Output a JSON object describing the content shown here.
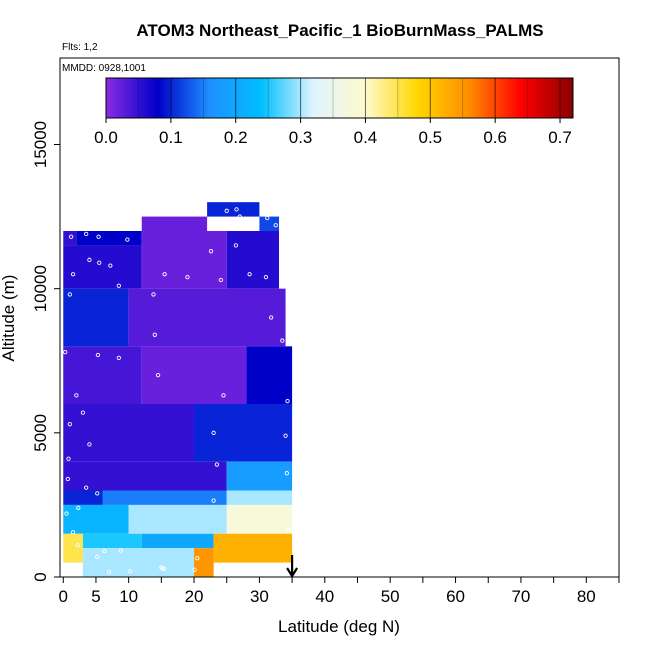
{
  "chart_data": {
    "type": "heatmap",
    "title": "ATOM3 Northeast_Pacific_1 BioBurnMass_PALMS",
    "subtitle_flights": "Flts: 1,2",
    "subtitle_dates": "MMDD: 0928,1001",
    "xlabel": "Latitude (deg N)",
    "ylabel": "Altitude (m)",
    "xlim": [
      -0.5,
      85
    ],
    "ylim": [
      0,
      18000
    ],
    "x_ticks": [
      0,
      5,
      10,
      20,
      30,
      40,
      50,
      60,
      70,
      80
    ],
    "y_ticks": [
      0,
      5000,
      10000,
      15000
    ],
    "marker_latitude": 35,
    "colorbar": {
      "min": 0,
      "max": 0.72,
      "ticks": [
        0.0,
        0.1,
        0.2,
        0.3,
        0.4,
        0.5,
        0.6,
        0.7
      ],
      "tick_labels": [
        "0.0",
        "0.1",
        "0.2",
        "0.3",
        "0.4",
        "0.5",
        "0.6",
        "0.7"
      ],
      "colors": [
        "#8a2be2",
        "#0000c8",
        "#1e90ff",
        "#00bfff",
        "#e0f4ff",
        "#fffacd",
        "#ffd700",
        "#ff8c00",
        "#ff0000",
        "#8b0000"
      ]
    },
    "cells": [
      {
        "lat0": 0,
        "lat1": 2,
        "alt0": 11500,
        "alt1": 12000,
        "value": 0.05
      },
      {
        "lat0": 2,
        "lat1": 12,
        "alt0": 11500,
        "alt1": 12000,
        "value": 0.08
      },
      {
        "lat0": 12,
        "lat1": 22,
        "alt0": 12000,
        "alt1": 12500,
        "value": 0.02
      },
      {
        "lat0": 22,
        "lat1": 30,
        "alt0": 12500,
        "alt1": 13000,
        "value": 0.1
      },
      {
        "lat0": 30,
        "lat1": 33,
        "alt0": 12000,
        "alt1": 12500,
        "value": 0.12
      },
      {
        "lat0": 0,
        "lat1": 12,
        "alt0": 10000,
        "alt1": 11500,
        "value": 0.06
      },
      {
        "lat0": 12,
        "lat1": 25,
        "alt0": 10000,
        "alt1": 12000,
        "value": 0.02
      },
      {
        "lat0": 25,
        "lat1": 33,
        "alt0": 10000,
        "alt1": 12000,
        "value": 0.06
      },
      {
        "lat0": 0,
        "lat1": 10,
        "alt0": 8000,
        "alt1": 10000,
        "value": 0.1
      },
      {
        "lat0": 10,
        "lat1": 34,
        "alt0": 8000,
        "alt1": 10000,
        "value": 0.03
      },
      {
        "lat0": 0,
        "lat1": 12,
        "alt0": 6000,
        "alt1": 8000,
        "value": 0.04
      },
      {
        "lat0": 12,
        "lat1": 28,
        "alt0": 6000,
        "alt1": 8000,
        "value": 0.02
      },
      {
        "lat0": 28,
        "lat1": 35,
        "alt0": 6000,
        "alt1": 8000,
        "value": 0.08
      },
      {
        "lat0": 0,
        "lat1": 20,
        "alt0": 4000,
        "alt1": 6000,
        "value": 0.05
      },
      {
        "lat0": 20,
        "lat1": 35,
        "alt0": 4000,
        "alt1": 6000,
        "value": 0.1
      },
      {
        "lat0": 0,
        "lat1": 25,
        "alt0": 3000,
        "alt1": 4000,
        "value": 0.05
      },
      {
        "lat0": 25,
        "lat1": 35,
        "alt0": 3000,
        "alt1": 4000,
        "value": 0.18
      },
      {
        "lat0": 0,
        "lat1": 6,
        "alt0": 2500,
        "alt1": 3000,
        "value": 0.1
      },
      {
        "lat0": 6,
        "lat1": 25,
        "alt0": 2500,
        "alt1": 3000,
        "value": 0.15
      },
      {
        "lat0": 25,
        "lat1": 35,
        "alt0": 2500,
        "alt1": 3000,
        "value": 0.3
      },
      {
        "lat0": 0,
        "lat1": 10,
        "alt0": 1500,
        "alt1": 2500,
        "value": 0.22
      },
      {
        "lat0": 10,
        "lat1": 25,
        "alt0": 1500,
        "alt1": 2500,
        "value": 0.3
      },
      {
        "lat0": 25,
        "lat1": 35,
        "alt0": 1500,
        "alt1": 2500,
        "value": 0.38
      },
      {
        "lat0": 0,
        "lat1": 3,
        "alt0": 500,
        "alt1": 1500,
        "value": 0.45
      },
      {
        "lat0": 3,
        "lat1": 12,
        "alt0": 1000,
        "alt1": 1500,
        "value": 0.25
      },
      {
        "lat0": 12,
        "lat1": 23,
        "alt0": 1000,
        "alt1": 1500,
        "value": 0.2
      },
      {
        "lat0": 23,
        "lat1": 35,
        "alt0": 500,
        "alt1": 1500,
        "value": 0.52
      },
      {
        "lat0": 3,
        "lat1": 20,
        "alt0": 0,
        "alt1": 1000,
        "value": 0.3
      },
      {
        "lat0": 20,
        "lat1": 23,
        "alt0": 0,
        "alt1": 1000,
        "value": 0.55
      }
    ],
    "samples": [
      {
        "lat": 1.2,
        "alt": 11800
      },
      {
        "lat": 3.5,
        "alt": 11900
      },
      {
        "lat": 5.4,
        "alt": 11800
      },
      {
        "lat": 9.8,
        "alt": 11700
      },
      {
        "lat": 4.0,
        "alt": 11000
      },
      {
        "lat": 5.5,
        "alt": 10900
      },
      {
        "lat": 7.2,
        "alt": 10800
      },
      {
        "lat": 1.5,
        "alt": 10500
      },
      {
        "lat": 8.5,
        "alt": 10100
      },
      {
        "lat": 15.5,
        "alt": 10500
      },
      {
        "lat": 19.0,
        "alt": 10400
      },
      {
        "lat": 24.1,
        "alt": 10300
      },
      {
        "lat": 28.5,
        "alt": 10500
      },
      {
        "lat": 31.0,
        "alt": 10400
      },
      {
        "lat": 34.0,
        "alt": 10300
      },
      {
        "lat": 25.0,
        "alt": 12700
      },
      {
        "lat": 26.5,
        "alt": 12750
      },
      {
        "lat": 27.0,
        "alt": 12500
      },
      {
        "lat": 29.5,
        "alt": 12400
      },
      {
        "lat": 31.2,
        "alt": 12450
      },
      {
        "lat": 32.5,
        "alt": 12200
      },
      {
        "lat": 23.8,
        "alt": 12200
      },
      {
        "lat": 22.6,
        "alt": 11300
      },
      {
        "lat": 26.4,
        "alt": 11500
      },
      {
        "lat": 33.6,
        "alt": 11600
      },
      {
        "lat": 1.0,
        "alt": 9800
      },
      {
        "lat": 13.8,
        "alt": 9800
      },
      {
        "lat": 31.8,
        "alt": 9000
      },
      {
        "lat": 14.0,
        "alt": 8400
      },
      {
        "lat": 33.5,
        "alt": 8200
      },
      {
        "lat": 5.3,
        "alt": 7700
      },
      {
        "lat": 8.5,
        "alt": 7600
      },
      {
        "lat": 0.3,
        "alt": 7800
      },
      {
        "lat": 14.5,
        "alt": 7000
      },
      {
        "lat": 2.0,
        "alt": 6300
      },
      {
        "lat": 24.5,
        "alt": 6300
      },
      {
        "lat": 34.3,
        "alt": 6100
      },
      {
        "lat": 3.0,
        "alt": 5700
      },
      {
        "lat": 1.0,
        "alt": 5300
      },
      {
        "lat": 23.0,
        "alt": 5000
      },
      {
        "lat": 34.0,
        "alt": 4900
      },
      {
        "lat": 4.0,
        "alt": 4600
      },
      {
        "lat": 0.8,
        "alt": 4100
      },
      {
        "lat": 23.5,
        "alt": 3900
      },
      {
        "lat": 34.2,
        "alt": 3600
      },
      {
        "lat": 0.7,
        "alt": 3400
      },
      {
        "lat": 3.5,
        "alt": 3100
      },
      {
        "lat": 5.2,
        "alt": 2900
      },
      {
        "lat": 23.0,
        "alt": 2650
      },
      {
        "lat": 0.5,
        "alt": 2200
      },
      {
        "lat": 2.3,
        "alt": 2400
      },
      {
        "lat": 6.3,
        "alt": 900
      },
      {
        "lat": 8.8,
        "alt": 920
      },
      {
        "lat": 15.0,
        "alt": 330
      },
      {
        "lat": 15.2,
        "alt": 300
      },
      {
        "lat": 15.4,
        "alt": 280
      },
      {
        "lat": 7.0,
        "alt": 180
      },
      {
        "lat": 10.2,
        "alt": 200
      },
      {
        "lat": 20.1,
        "alt": 250
      },
      {
        "lat": 20.5,
        "alt": 650
      },
      {
        "lat": 5.2,
        "alt": 700
      },
      {
        "lat": 2.2,
        "alt": 1100
      },
      {
        "lat": 1.5,
        "alt": 1550
      },
      {
        "lat": 34.5,
        "alt": 1650
      },
      {
        "lat": 34.5,
        "alt": 350
      }
    ]
  }
}
